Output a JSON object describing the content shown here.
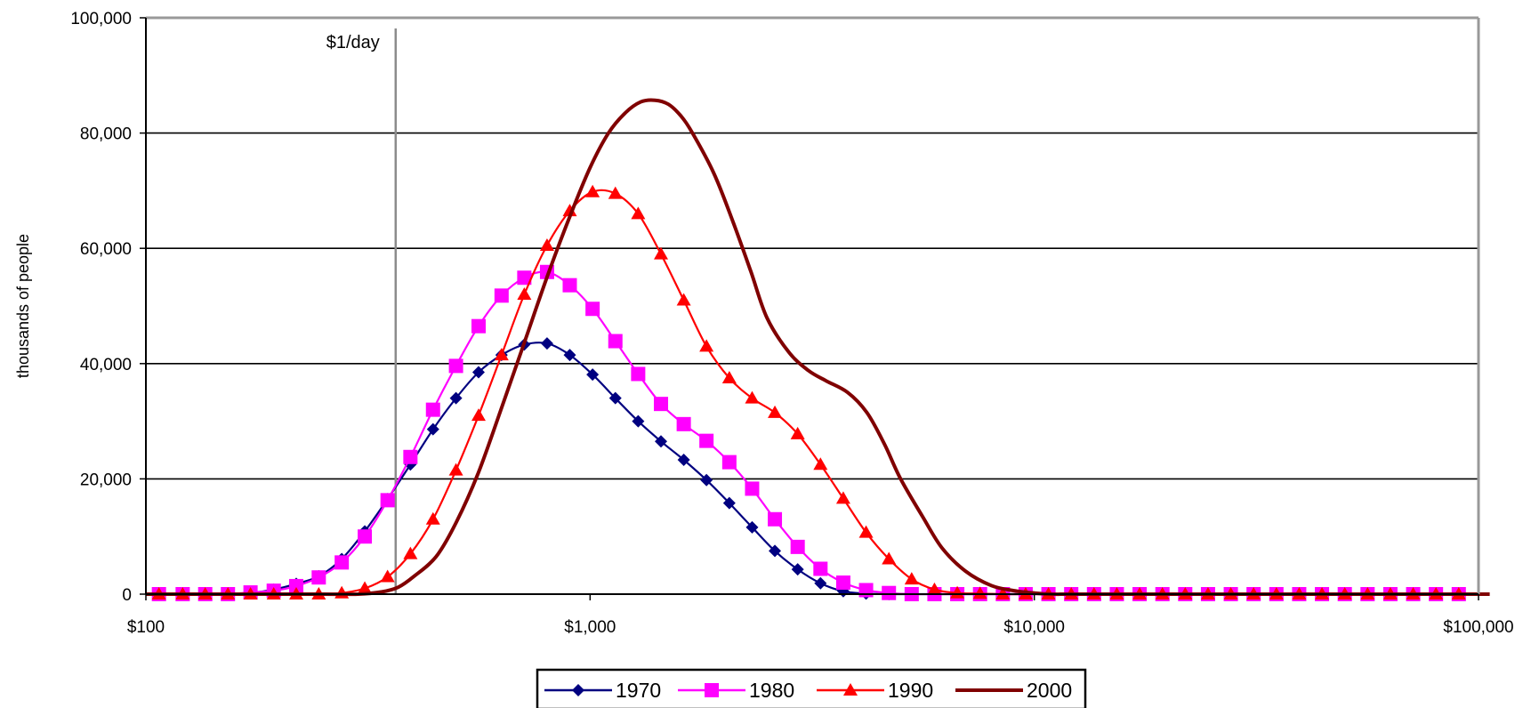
{
  "chart_data": {
    "type": "line",
    "xscale": "log",
    "xlim": [
      100,
      100000
    ],
    "ylim": [
      0,
      100000
    ],
    "ylabel": "thousands of people",
    "xticks": [
      {
        "value": 100,
        "label": "$100"
      },
      {
        "value": 1000,
        "label": "$1,000"
      },
      {
        "value": 10000,
        "label": "$10,000"
      },
      {
        "value": 100000,
        "label": "$100,000"
      }
    ],
    "yticks": [
      {
        "value": 0,
        "label": "0"
      },
      {
        "value": 20000,
        "label": "20,000"
      },
      {
        "value": 40000,
        "label": "40,000"
      },
      {
        "value": 60000,
        "label": "60,000"
      },
      {
        "value": 80000,
        "label": "80,000"
      },
      {
        "value": 100000,
        "label": "100,000"
      }
    ],
    "gridlines": "horizontal",
    "reference_line": {
      "x": 365,
      "label": "$1/day"
    },
    "legend_position": "bottom",
    "series": [
      {
        "name": "1970",
        "color": "#000080",
        "marker": "diamond",
        "x": [
          107,
          121,
          136,
          153,
          172,
          194,
          218,
          245,
          276,
          311,
          350,
          394,
          443,
          499,
          561,
          632,
          711,
          800,
          900,
          1013,
          1140,
          1283,
          1444,
          1625,
          1828,
          2058,
          2316,
          2606,
          2933,
          3301,
          3715,
          4181,
          4706,
          5296,
          5960,
          6708,
          7549,
          8496,
          9561,
          10761,
          12110,
          13629,
          15339,
          17263,
          19428,
          21865,
          24607,
          27694,
          31167,
          35076,
          39476,
          44427,
          50000,
          56271,
          63328,
          71271,
          80210,
          90270
        ],
        "y": [
          0,
          0,
          0,
          0,
          200,
          800,
          1800,
          3100,
          6100,
          10900,
          16500,
          22500,
          28600,
          34000,
          38500,
          41500,
          43300,
          43500,
          41500,
          38100,
          34000,
          30000,
          26500,
          23300,
          19800,
          15800,
          11600,
          7500,
          4300,
          1900,
          500,
          100,
          0,
          0,
          0,
          0,
          0,
          0,
          0,
          0,
          0,
          0,
          0,
          0,
          0,
          0,
          0,
          0,
          0,
          0,
          0,
          0,
          0,
          0,
          0,
          0,
          0,
          0
        ]
      },
      {
        "name": "1980",
        "color": "#ff00ff",
        "marker": "square",
        "x": [
          107,
          121,
          136,
          153,
          172,
          194,
          218,
          245,
          276,
          311,
          350,
          394,
          443,
          499,
          561,
          632,
          711,
          800,
          900,
          1013,
          1140,
          1283,
          1444,
          1625,
          1828,
          2058,
          2316,
          2606,
          2933,
          3301,
          3715,
          4181,
          4706,
          5296,
          5960,
          6708,
          7549,
          8496,
          9561,
          10761,
          12110,
          13629,
          15339,
          17263,
          19428,
          21865,
          24607,
          27694,
          31167,
          35076,
          39476,
          44427,
          50000,
          56271,
          63328,
          71271,
          80210,
          90270
        ],
        "y": [
          0,
          0,
          0,
          0,
          300,
          600,
          1400,
          2900,
          5500,
          10000,
          16300,
          23800,
          32000,
          39600,
          46500,
          51800,
          54900,
          55900,
          53600,
          49500,
          43900,
          38200,
          33000,
          29500,
          26600,
          22900,
          18300,
          13000,
          8200,
          4400,
          2000,
          700,
          200,
          0,
          0,
          0,
          0,
          0,
          0,
          0,
          0,
          0,
          0,
          0,
          0,
          0,
          0,
          0,
          0,
          0,
          0,
          0,
          0,
          0,
          0,
          0,
          0,
          0
        ]
      },
      {
        "name": "1990",
        "color": "#ff0000",
        "marker": "triangle",
        "x": [
          107,
          121,
          136,
          153,
          172,
          194,
          218,
          245,
          276,
          311,
          350,
          394,
          443,
          499,
          561,
          632,
          711,
          800,
          900,
          1013,
          1140,
          1283,
          1444,
          1625,
          1828,
          2058,
          2316,
          2606,
          2933,
          3301,
          3715,
          4181,
          4706,
          5296,
          5960,
          6708,
          7549,
          8496,
          9561,
          10761,
          12110,
          13629,
          15339,
          17263,
          19428,
          21865,
          24607,
          27694,
          31167,
          35076,
          39476,
          44427,
          50000,
          56271,
          63328,
          71271,
          80210,
          90270
        ],
        "y": [
          0,
          0,
          0,
          0,
          0,
          0,
          0,
          0,
          200,
          1000,
          3000,
          7000,
          13000,
          21500,
          31000,
          41500,
          52000,
          60500,
          66500,
          69800,
          69500,
          66000,
          59000,
          51000,
          43000,
          37500,
          34000,
          31500,
          27800,
          22500,
          16600,
          10700,
          6100,
          2600,
          800,
          200,
          100,
          0,
          0,
          0,
          0,
          0,
          0,
          0,
          0,
          0,
          0,
          0,
          0,
          0,
          0,
          0,
          0,
          0,
          0,
          0,
          0,
          0
        ]
      },
      {
        "name": "2000",
        "color": "#800000",
        "marker": "none",
        "x": [
          100,
          200,
          250,
          300,
          340,
          370,
          400,
          450,
          500,
          560,
          630,
          710,
          800,
          900,
          1000,
          1100,
          1200,
          1300,
          1400,
          1500,
          1600,
          1700,
          1900,
          2100,
          2300,
          2500,
          2800,
          3100,
          3400,
          3800,
          4200,
          4600,
          5000,
          5600,
          6200,
          7000,
          8000,
          9000,
          10000,
          11000,
          12000,
          15000,
          30000,
          60000,
          106000
        ],
        "y": [
          0,
          0,
          0,
          0,
          400,
          1200,
          3000,
          6500,
          12500,
          21000,
          32000,
          43500,
          55000,
          65500,
          74000,
          80000,
          83500,
          85400,
          85700,
          85000,
          83000,
          80000,
          73000,
          64500,
          56000,
          48000,
          42000,
          38800,
          37000,
          35000,
          31500,
          26000,
          20000,
          13500,
          8000,
          4000,
          1500,
          600,
          200,
          0,
          0,
          0,
          0,
          0,
          0
        ]
      }
    ]
  }
}
